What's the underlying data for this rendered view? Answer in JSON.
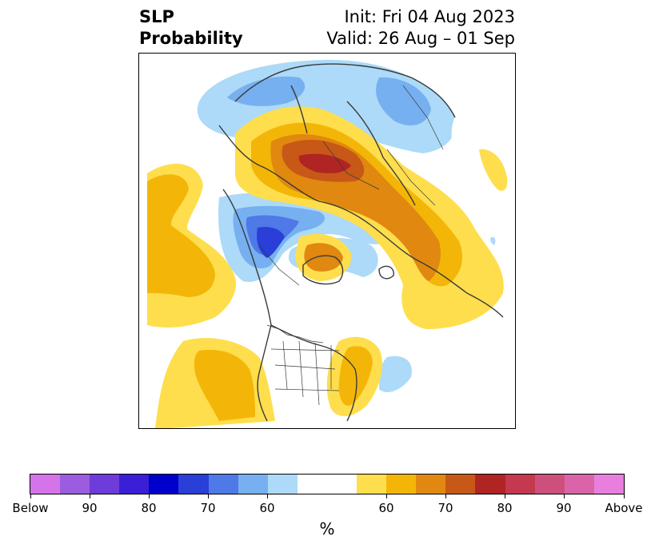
{
  "title": {
    "left_line1": "SLP",
    "left_line2": "Probability",
    "right_line1": "Init: Fri 04 Aug 2023",
    "right_line2": "Valid: 26 Aug – 01 Sep"
  },
  "colorbar": {
    "unit": "%",
    "colors": [
      "#d574e8",
      "#9b5ce0",
      "#6d3cdb",
      "#3b1fd6",
      "#0000cc",
      "#2a3ed8",
      "#4e79e6",
      "#77b0f0",
      "#acdaf8",
      "#ffffff",
      "#ffffff",
      "#fede4d",
      "#f3b608",
      "#e0880f",
      "#c85817",
      "#b02424",
      "#c43850",
      "#cd507c",
      "#db64a8",
      "#e87fde"
    ],
    "tick_labels": [
      "Below",
      "90",
      "80",
      "70",
      "60",
      "60",
      "70",
      "80",
      "90",
      "Above"
    ]
  },
  "map": {
    "projection": "north-polar-stereographic",
    "fill_colors": {
      "blue_light": "#acdaf8",
      "blue_mid": "#77b0f0",
      "blue_strong": "#4e79e6",
      "blue_deep": "#2a3ed8",
      "yellow": "#fede4d",
      "gold": "#f3b608",
      "orange": "#e0880f",
      "rust": "#c85817",
      "red": "#b02424"
    }
  }
}
